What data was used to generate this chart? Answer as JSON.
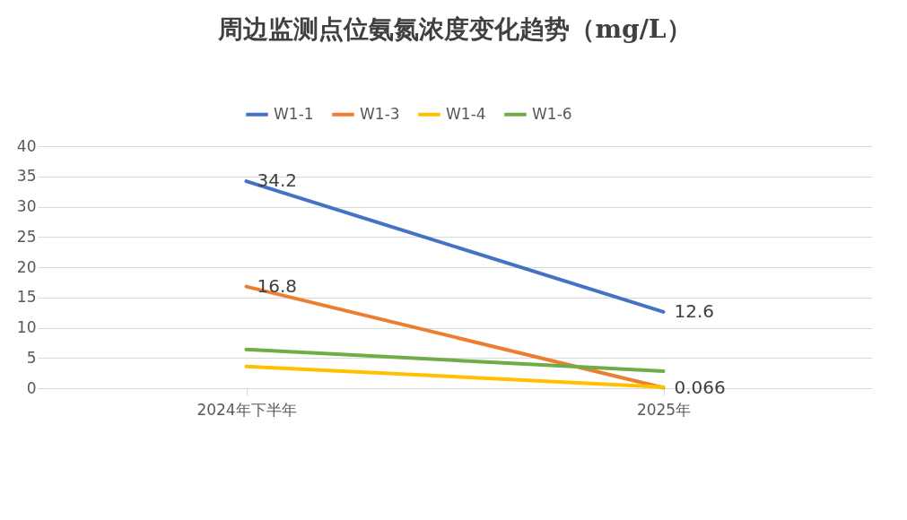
{
  "chart_data": {
    "type": "line",
    "title": "周边监测点位氨氮浓度变化趋势（mg/L）",
    "categories": [
      "2024年下半年",
      "2025年"
    ],
    "series": [
      {
        "name": "W1-1",
        "color": "#4472c4",
        "values": [
          34.2,
          12.6
        ],
        "value_labels": [
          "34.2",
          "12.6"
        ]
      },
      {
        "name": "W1-3",
        "color": "#ed7d31",
        "values": [
          16.8,
          0.066
        ],
        "value_labels": [
          "16.8",
          "0.066"
        ]
      },
      {
        "name": "W1-4",
        "color": "#ffc000",
        "values": [
          3.6,
          0.2
        ]
      },
      {
        "name": "W1-6",
        "color": "#70ad47",
        "values": [
          6.4,
          2.8
        ]
      }
    ],
    "ylim": [
      0,
      40
    ],
    "yticks": [
      0,
      5,
      10,
      15,
      20,
      25,
      30,
      35,
      40
    ],
    "grid": "y",
    "legend": "top",
    "line_style": "solid"
  }
}
